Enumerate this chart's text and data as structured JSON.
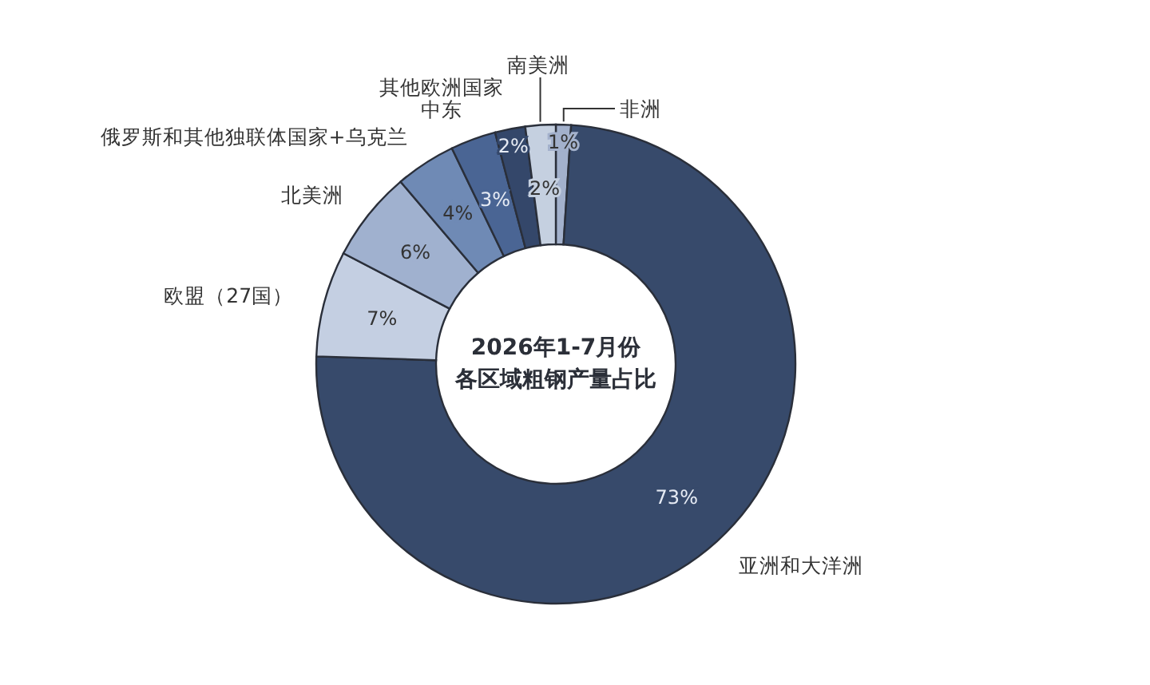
{
  "chart_data": {
    "type": "donut",
    "title": "2026年1-7月份",
    "subtitle": "各区域粗钢产量占比",
    "categories": [
      "非洲",
      "亚洲和大洋洲",
      "欧盟（27国）",
      "北美洲",
      "俄罗斯和其他独联体国家+乌克兰",
      "中东",
      "其他欧洲国家",
      "南美洲"
    ],
    "values": [
      1,
      73,
      7,
      6,
      4,
      3,
      2,
      2
    ],
    "value_labels": [
      "1%",
      "73%",
      "7%",
      "6%",
      "4%",
      "3%",
      "2%",
      "2%"
    ],
    "colors": [
      "#a3b1cc",
      "#374a6b",
      "#c4cfe2",
      "#a0b1cf",
      "#6f8ab5",
      "#4a6594",
      "#34476a",
      "#c5d0e0"
    ]
  }
}
